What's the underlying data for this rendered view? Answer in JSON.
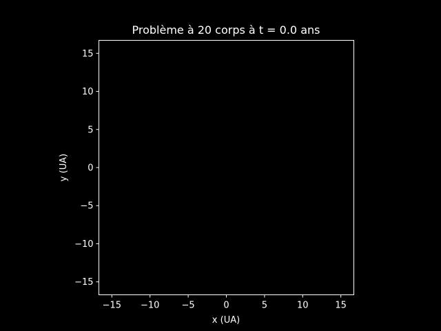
{
  "chart_data": {
    "type": "scatter",
    "title": "Problème à 20 corps à t = 0.0 ans",
    "xlabel": "x (UA)",
    "ylabel": "y (UA)",
    "xlim": [
      -16.7,
      16.7
    ],
    "ylim": [
      -16.7,
      16.7
    ],
    "x_ticks": [
      -15,
      -10,
      -5,
      0,
      5,
      10,
      15
    ],
    "y_ticks": [
      -15,
      -10,
      -5,
      0,
      5,
      10,
      15
    ],
    "x_tick_labels": [
      "−15",
      "−10",
      "−5",
      "0",
      "5",
      "10",
      "15"
    ],
    "y_tick_labels": [
      "−15",
      "−10",
      "−5",
      "0",
      "5",
      "10",
      "15"
    ],
    "grid": false,
    "series": [
      {
        "x": [],
        "y": []
      }
    ],
    "colors": {
      "background": "#000000",
      "axes": "#ffffff",
      "text": "#ffffff"
    }
  }
}
